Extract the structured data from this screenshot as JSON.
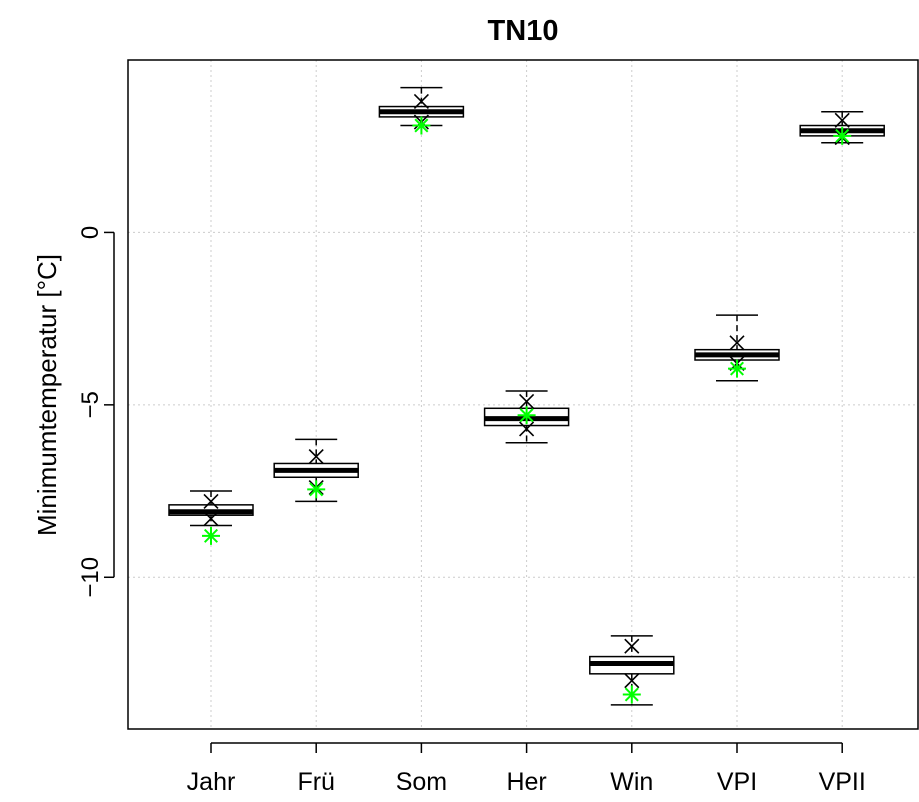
{
  "chart_data": {
    "type": "boxplot",
    "title": "TN10",
    "xlabel": "",
    "ylabel": "Minimumtemperatur [°C]",
    "ylim": [
      -14.4,
      5.0
    ],
    "yticks": [
      -10,
      -5,
      0
    ],
    "ytick_labels": [
      "−10",
      "−5",
      "0"
    ],
    "grid": true,
    "categories": [
      "Jahr",
      "Frü",
      "Som",
      "Her",
      "Win",
      "VPI",
      "VPII"
    ],
    "boxes": [
      {
        "whisker_low": -8.5,
        "q1": -8.2,
        "median": -8.1,
        "q3": -7.9,
        "whisker_high": -7.5,
        "cross_high": -7.8,
        "cross_low": -8.3,
        "star": -8.8
      },
      {
        "whisker_low": -7.8,
        "q1": -7.1,
        "median": -6.9,
        "q3": -6.7,
        "whisker_high": -6.0,
        "cross_high": -6.5,
        "cross_low": -7.4,
        "star": -7.45
      },
      {
        "whisker_low": 3.1,
        "q1": 3.35,
        "median": 3.5,
        "q3": 3.65,
        "whisker_high": 4.2,
        "cross_high": 3.8,
        "cross_low": 3.2,
        "star": 3.1
      },
      {
        "whisker_low": -6.1,
        "q1": -5.6,
        "median": -5.4,
        "q3": -5.1,
        "whisker_high": -4.6,
        "cross_high": -4.9,
        "cross_low": -5.7,
        "star": -5.3
      },
      {
        "whisker_low": -13.7,
        "q1": -12.8,
        "median": -12.5,
        "q3": -12.3,
        "whisker_high": -11.7,
        "cross_high": -12.0,
        "cross_low": -13.0,
        "star": -13.4
      },
      {
        "whisker_low": -4.3,
        "q1": -3.7,
        "median": -3.55,
        "q3": -3.4,
        "whisker_high": -2.4,
        "cross_high": -3.2,
        "cross_low": -3.8,
        "star": -3.95
      },
      {
        "whisker_low": 2.6,
        "q1": 2.8,
        "median": 2.95,
        "q3": 3.1,
        "whisker_high": 3.5,
        "cross_high": 3.25,
        "cross_low": 2.75,
        "star": 2.8
      }
    ],
    "colors": {
      "box": "#000000",
      "cross": "#000000",
      "star": "#00ff00",
      "grid": "#cccccc"
    }
  }
}
